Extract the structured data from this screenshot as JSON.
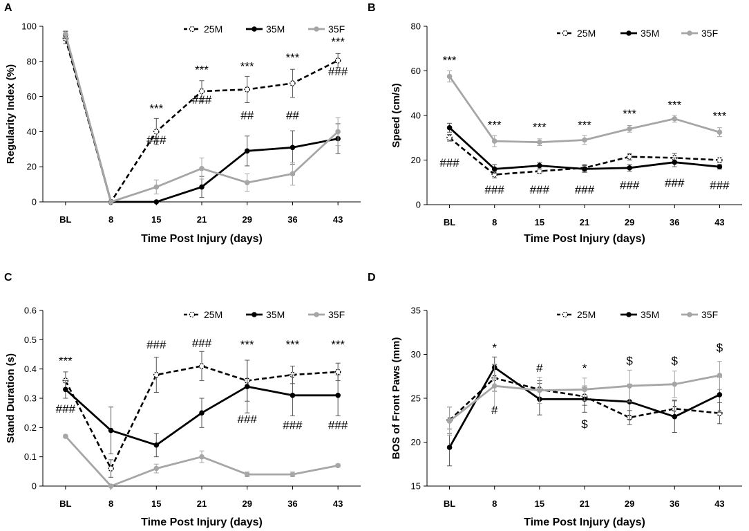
{
  "x_categories": [
    "BL",
    "8",
    "15",
    "21",
    "29",
    "36",
    "43"
  ],
  "series_names": [
    "25M",
    "35M",
    "35F"
  ],
  "colors": {
    "25M": "#000000",
    "35M": "#000000",
    "35F": "#a6a6a6",
    "axis": "#000000"
  },
  "chart_data": [
    {
      "type": "line",
      "panel": "A",
      "xlabel": "Time Post Injury (days)",
      "ylabel": "Regularity Index (%)",
      "ylim": [
        0,
        100
      ],
      "yticks": [
        "0",
        "20",
        "40",
        "60",
        "80",
        "100"
      ],
      "categories": [
        "BL",
        "8",
        "15",
        "21",
        "29",
        "36",
        "43"
      ],
      "legend": [
        "25M",
        "35M",
        "35F"
      ],
      "series": [
        {
          "name": "25M",
          "values": [
            93,
            0,
            40,
            63,
            64,
            67.5,
            80.5
          ],
          "errors": [
            3,
            0,
            7.5,
            6,
            7.5,
            8,
            4
          ]
        },
        {
          "name": "35M",
          "values": [
            95,
            0,
            0,
            8.5,
            29,
            31,
            36
          ],
          "errors": [
            2,
            0,
            0,
            6,
            8.5,
            9.5,
            8.5
          ]
        },
        {
          "name": "35F",
          "values": [
            95.5,
            0,
            8.5,
            19,
            11,
            16,
            40
          ],
          "errors": [
            2,
            0,
            4,
            6,
            5,
            6.5,
            8
          ]
        }
      ],
      "annotations": [
        {
          "text": "***",
          "x": 2,
          "y": 51
        },
        {
          "text": "###",
          "x": 2,
          "y": 33
        },
        {
          "text": "***",
          "x": 3,
          "y": 73
        },
        {
          "text": "###",
          "x": 3,
          "y": 56
        },
        {
          "text": "***",
          "x": 4,
          "y": 75
        },
        {
          "text": "##",
          "x": 4,
          "y": 47
        },
        {
          "text": "***",
          "x": 5,
          "y": 80
        },
        {
          "text": "##",
          "x": 5,
          "y": 47
        },
        {
          "text": "***",
          "x": 6,
          "y": 89
        },
        {
          "text": "###",
          "x": 6,
          "y": 72
        }
      ]
    },
    {
      "type": "line",
      "panel": "B",
      "xlabel": "Time Post Injury (days)",
      "ylabel": "Speed (cm/s)",
      "ylim": [
        0,
        80
      ],
      "yticks": [
        "0",
        "20",
        "40",
        "60",
        "80"
      ],
      "categories": [
        "BL",
        "8",
        "15",
        "21",
        "29",
        "36",
        "43"
      ],
      "legend": [
        "25M",
        "35M",
        "35F"
      ],
      "series": [
        {
          "name": "25M",
          "values": [
            30,
            13.5,
            15,
            16.5,
            21.5,
            21,
            20
          ],
          "errors": [
            1.5,
            1.5,
            1,
            1.5,
            1.5,
            2,
            1
          ]
        },
        {
          "name": "35M",
          "values": [
            34.5,
            16,
            17.5,
            16,
            16.5,
            19,
            17
          ],
          "errors": [
            2,
            2,
            1.5,
            1.5,
            1.5,
            2,
            1
          ]
        },
        {
          "name": "35F",
          "values": [
            57.5,
            28.5,
            28,
            29,
            34,
            38.5,
            32.5
          ],
          "errors": [
            2.5,
            2.5,
            1.5,
            2,
            1.5,
            1.5,
            2
          ]
        }
      ],
      "annotations": [
        {
          "text": "***",
          "x": 0,
          "y": 63
        },
        {
          "text": "###",
          "x": 0,
          "y": 17
        },
        {
          "text": "***",
          "x": 1,
          "y": 34
        },
        {
          "text": "###",
          "x": 1,
          "y": 5
        },
        {
          "text": "***",
          "x": 2,
          "y": 33
        },
        {
          "text": "###",
          "x": 2,
          "y": 5
        },
        {
          "text": "***",
          "x": 3,
          "y": 34
        },
        {
          "text": "###",
          "x": 3,
          "y": 5
        },
        {
          "text": "***",
          "x": 4,
          "y": 39
        },
        {
          "text": "###",
          "x": 4,
          "y": 7
        },
        {
          "text": "***",
          "x": 5,
          "y": 43
        },
        {
          "text": "###",
          "x": 5,
          "y": 8
        },
        {
          "text": "***",
          "x": 6,
          "y": 38
        },
        {
          "text": "###",
          "x": 6,
          "y": 7
        }
      ]
    },
    {
      "type": "line",
      "panel": "C",
      "xlabel": "Time Post Injury (days)",
      "ylabel": "Stand Duration (s)",
      "ylim": [
        0,
        0.6
      ],
      "yticks": [
        "0",
        "0.1",
        "0.2",
        "0.3",
        "0.4",
        "0.5",
        "0.6"
      ],
      "categories": [
        "BL",
        "8",
        "15",
        "21",
        "29",
        "36",
        "43"
      ],
      "legend": [
        "25M",
        "35M",
        "35F"
      ],
      "series": [
        {
          "name": "25M",
          "values": [
            0.36,
            0.06,
            0.38,
            0.41,
            0.36,
            0.38,
            0.39
          ],
          "errors": [
            0.03,
            0.03,
            0.06,
            0.05,
            0.07,
            0.03,
            0.03
          ]
        },
        {
          "name": "35M",
          "values": [
            0.33,
            0.19,
            0.14,
            0.25,
            0.34,
            0.31,
            0.31
          ],
          "errors": [
            0.03,
            0.08,
            0.04,
            0.05,
            0.09,
            0.07,
            0.07
          ]
        },
        {
          "name": "35F",
          "values": [
            0.17,
            0.0,
            0.06,
            0.1,
            0.04,
            0.04,
            0.07
          ],
          "errors": [
            0.005,
            0.0,
            0.015,
            0.02,
            0.008,
            0.008,
            0.005
          ]
        }
      ],
      "annotations": [
        {
          "text": "***",
          "x": 0,
          "y": 0.415
        },
        {
          "text": "###",
          "x": 0,
          "y": 0.25
        },
        {
          "text": "###",
          "x": 2,
          "y": 0.47
        },
        {
          "text": "###",
          "x": 3,
          "y": 0.475
        },
        {
          "text": "***",
          "x": 4,
          "y": 0.47
        },
        {
          "text": "###",
          "x": 4,
          "y": 0.215
        },
        {
          "text": "***",
          "x": 5,
          "y": 0.47
        },
        {
          "text": "###",
          "x": 5,
          "y": 0.195
        },
        {
          "text": "***",
          "x": 6,
          "y": 0.47
        },
        {
          "text": "###",
          "x": 6,
          "y": 0.195
        }
      ]
    },
    {
      "type": "line",
      "panel": "D",
      "xlabel": "Time Post Injury (days)",
      "ylabel": "BOS of Front Paws (mm)",
      "ylim": [
        15,
        35
      ],
      "yticks": [
        "15",
        "20",
        "25",
        "30",
        "35"
      ],
      "categories": [
        "BL",
        "8",
        "15",
        "21",
        "29",
        "36",
        "43"
      ],
      "legend": [
        "25M",
        "35M",
        "35F"
      ],
      "series": [
        {
          "name": "25M",
          "values": [
            22.5,
            27.3,
            26.0,
            25.2,
            22.8,
            23.8,
            23.3
          ],
          "errors": [
            1.5,
            1.5,
            1.0,
            1.0,
            0.8,
            1.0,
            1.2
          ]
        },
        {
          "name": "35M",
          "values": [
            19.4,
            28.5,
            24.9,
            24.9,
            24.6,
            22.9,
            25.4
          ],
          "errors": [
            2.1,
            1.2,
            1.8,
            1.5,
            2.0,
            1.8,
            2.0
          ]
        },
        {
          "name": "35F",
          "values": [
            22.4,
            26.4,
            25.9,
            26.0,
            26.4,
            26.6,
            27.6
          ],
          "errors": [
            1.6,
            2.5,
            1.5,
            1.3,
            1.8,
            1.5,
            1.6
          ]
        }
      ],
      "annotations": [
        {
          "text": "*",
          "x": 1,
          "y": 30.3
        },
        {
          "text": "#",
          "x": 1,
          "y": 23.2
        },
        {
          "text": "#",
          "x": 2,
          "y": 28.0
        },
        {
          "text": "*",
          "x": 3,
          "y": 28.0
        },
        {
          "text": "$",
          "x": 3,
          "y": 21.6
        },
        {
          "text": "$",
          "x": 4,
          "y": 28.8
        },
        {
          "text": "$",
          "x": 5,
          "y": 28.8
        },
        {
          "text": "$",
          "x": 6,
          "y": 30.3
        }
      ]
    }
  ]
}
